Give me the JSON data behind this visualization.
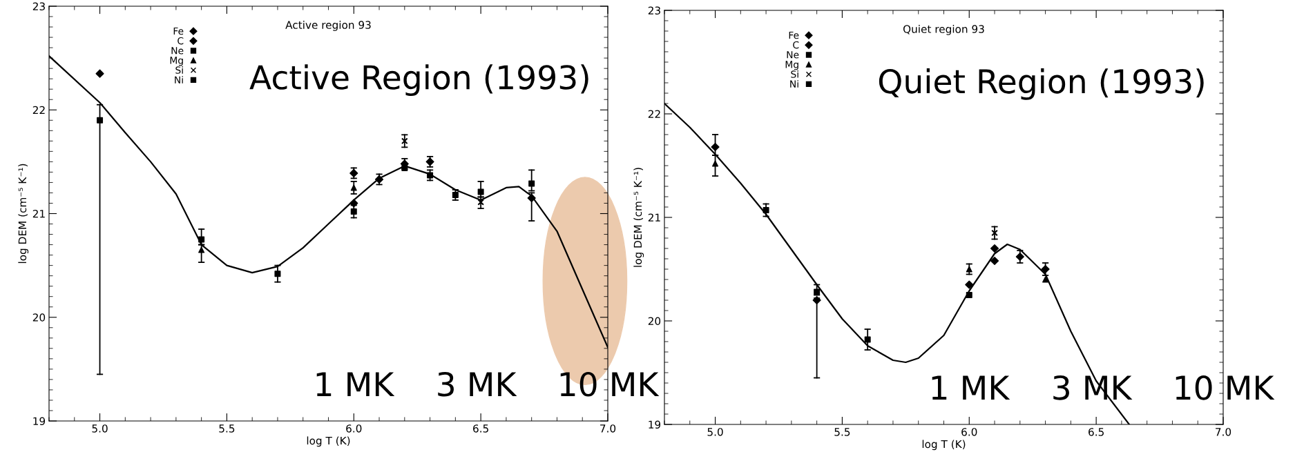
{
  "chart_data": [
    {
      "type": "scatter",
      "title": "Active region 93",
      "xlabel": "log T (K)",
      "ylabel": "log DEM (cm⁻⁵ K⁻¹)",
      "xlim": [
        4.8,
        7.0
      ],
      "ylim": [
        19,
        23
      ],
      "xticks": [
        {
          "value": 5.0,
          "label": "5.0"
        },
        {
          "value": 5.5,
          "label": "5.5"
        },
        {
          "value": 6.0,
          "label": "6.0"
        },
        {
          "value": 6.5,
          "label": "6.5"
        },
        {
          "value": 7.0,
          "label": "7.0"
        }
      ],
      "yticks": [
        19,
        20,
        21,
        22,
        23
      ],
      "legend": "top left",
      "grid": false,
      "annotations": [
        "Active Region (1993)",
        "1 MK",
        "3 MK",
        "10 MK"
      ],
      "series": [
        {
          "type": "line",
          "color": "#000000",
          "x": [
            4.8,
            5.0,
            5.1,
            5.2,
            5.3,
            5.4,
            5.5,
            5.6,
            5.7,
            5.8,
            5.9,
            6.0,
            6.1,
            6.2,
            6.3,
            6.4,
            6.5,
            6.6,
            6.65,
            6.7,
            6.8,
            6.9,
            7.0
          ],
          "values": [
            22.52,
            22.07,
            21.78,
            21.5,
            21.19,
            20.7,
            20.5,
            20.43,
            20.49,
            20.67,
            20.9,
            21.13,
            21.34,
            21.46,
            21.38,
            21.23,
            21.13,
            21.25,
            21.26,
            21.17,
            20.83,
            20.27,
            19.71
          ]
        },
        {
          "name": "Fe",
          "marker": "diamond",
          "color": "#000000",
          "x": [
            5.0,
            6.0,
            6.1,
            6.2,
            6.3,
            6.7
          ],
          "values": [
            22.35,
            21.39,
            21.33,
            21.48,
            21.5,
            21.15
          ],
          "errors": [
            null,
            0.05,
            0.05,
            0.05,
            0.05,
            [
              20.93,
              21.2
            ]
          ]
        },
        {
          "name": "C",
          "marker": "diamond",
          "color": "#000000",
          "x": [
            6.0
          ],
          "values": [
            21.1
          ],
          "errors": [
            null
          ]
        },
        {
          "name": "Ne",
          "marker": "square",
          "color": "#000000",
          "x": [
            5.0,
            5.4,
            5.7
          ],
          "values": [
            21.9,
            20.75,
            20.42
          ],
          "errors": [
            [
              19.45,
              22.05
            ],
            [
              20.7,
              20.85
            ],
            0.08
          ]
        },
        {
          "name": "Mg",
          "marker": "triangle",
          "color": "#000000",
          "x": [
            5.4,
            6.0
          ],
          "values": [
            20.65,
            21.25
          ],
          "errors": [
            [
              20.53,
              20.7
            ],
            0.06
          ]
        },
        {
          "name": "Si",
          "marker": "cross",
          "color": "#000000",
          "x": [
            6.2,
            6.5
          ],
          "values": [
            21.7,
            21.11
          ],
          "errors": [
            0.06,
            [
              21.05,
              21.16
            ]
          ]
        },
        {
          "name": "Ni",
          "marker": "square",
          "color": "#000000",
          "x": [
            6.0,
            6.2,
            6.3,
            6.4,
            6.5,
            6.7
          ],
          "values": [
            21.02,
            21.44,
            21.37,
            21.18,
            21.21,
            21.29
          ],
          "errors": [
            0.06,
            null,
            0.05,
            0.05,
            [
              21.16,
              21.31
            ],
            [
              21.22,
              21.42
            ]
          ]
        }
      ]
    },
    {
      "type": "scatter",
      "title": "Quiet region 93",
      "xlabel": "log T (K)",
      "ylabel": "log DEM (cm⁻⁵ K⁻¹)",
      "xlim": [
        4.8,
        7.0
      ],
      "ylim": [
        19,
        23
      ],
      "xticks": [
        {
          "value": 5.0,
          "label": "5.0"
        },
        {
          "value": 5.5,
          "label": "5.5"
        },
        {
          "value": 6.0,
          "label": "6.0"
        },
        {
          "value": 6.5,
          "label": "6.5"
        },
        {
          "value": 7.0,
          "label": "7.0"
        }
      ],
      "yticks": [
        19,
        20,
        21,
        22,
        23
      ],
      "legend": "top left",
      "grid": false,
      "annotations": [
        "Quiet Region (1993)",
        "1 MK",
        "3 MK",
        "10 MK"
      ],
      "series": [
        {
          "type": "line",
          "color": "#000000",
          "x": [
            4.8,
            4.9,
            5.0,
            5.1,
            5.2,
            5.3,
            5.4,
            5.5,
            5.6,
            5.7,
            5.75,
            5.8,
            5.9,
            6.0,
            6.1,
            6.15,
            6.2,
            6.3,
            6.4,
            6.5,
            6.63
          ],
          "values": [
            22.1,
            21.87,
            21.61,
            21.33,
            21.03,
            20.69,
            20.35,
            20.02,
            19.76,
            19.62,
            19.6,
            19.64,
            19.86,
            20.29,
            20.65,
            20.74,
            20.69,
            20.45,
            19.9,
            19.42,
            19.0
          ]
        },
        {
          "name": "Fe",
          "marker": "diamond",
          "color": "#000000",
          "x": [
            5.0,
            5.4,
            6.0,
            6.1,
            6.2,
            6.3
          ],
          "values": [
            21.68,
            20.2,
            20.35,
            20.7,
            20.62,
            20.5
          ],
          "errors": [
            [
              21.6,
              21.8
            ],
            [
              19.45,
              20.22
            ],
            null,
            null,
            0.06,
            0.06
          ]
        },
        {
          "name": "C",
          "marker": "diamond",
          "color": "#000000",
          "x": [
            6.1
          ],
          "values": [
            20.58
          ],
          "errors": [
            null
          ]
        },
        {
          "name": "Ne",
          "marker": "square",
          "color": "#000000",
          "x": [
            5.2,
            5.4,
            5.6
          ],
          "values": [
            21.07,
            20.28,
            19.82
          ],
          "errors": [
            0.06,
            [
              20.25,
              20.35
            ],
            0.1
          ]
        },
        {
          "name": "Mg",
          "marker": "triangle",
          "color": "#000000",
          "x": [
            5.0,
            6.0,
            6.3
          ],
          "values": [
            21.52,
            20.5,
            20.4
          ],
          "errors": [
            [
              21.4,
              21.6
            ],
            0.05,
            null
          ]
        },
        {
          "name": "Si",
          "marker": "cross",
          "color": "#000000",
          "x": [
            6.1
          ],
          "values": [
            20.85
          ],
          "errors": [
            0.06
          ]
        },
        {
          "name": "Ni",
          "marker": "square",
          "color": "#000000",
          "x": [
            6.0
          ],
          "values": [
            20.25
          ],
          "errors": [
            null
          ]
        }
      ]
    }
  ]
}
